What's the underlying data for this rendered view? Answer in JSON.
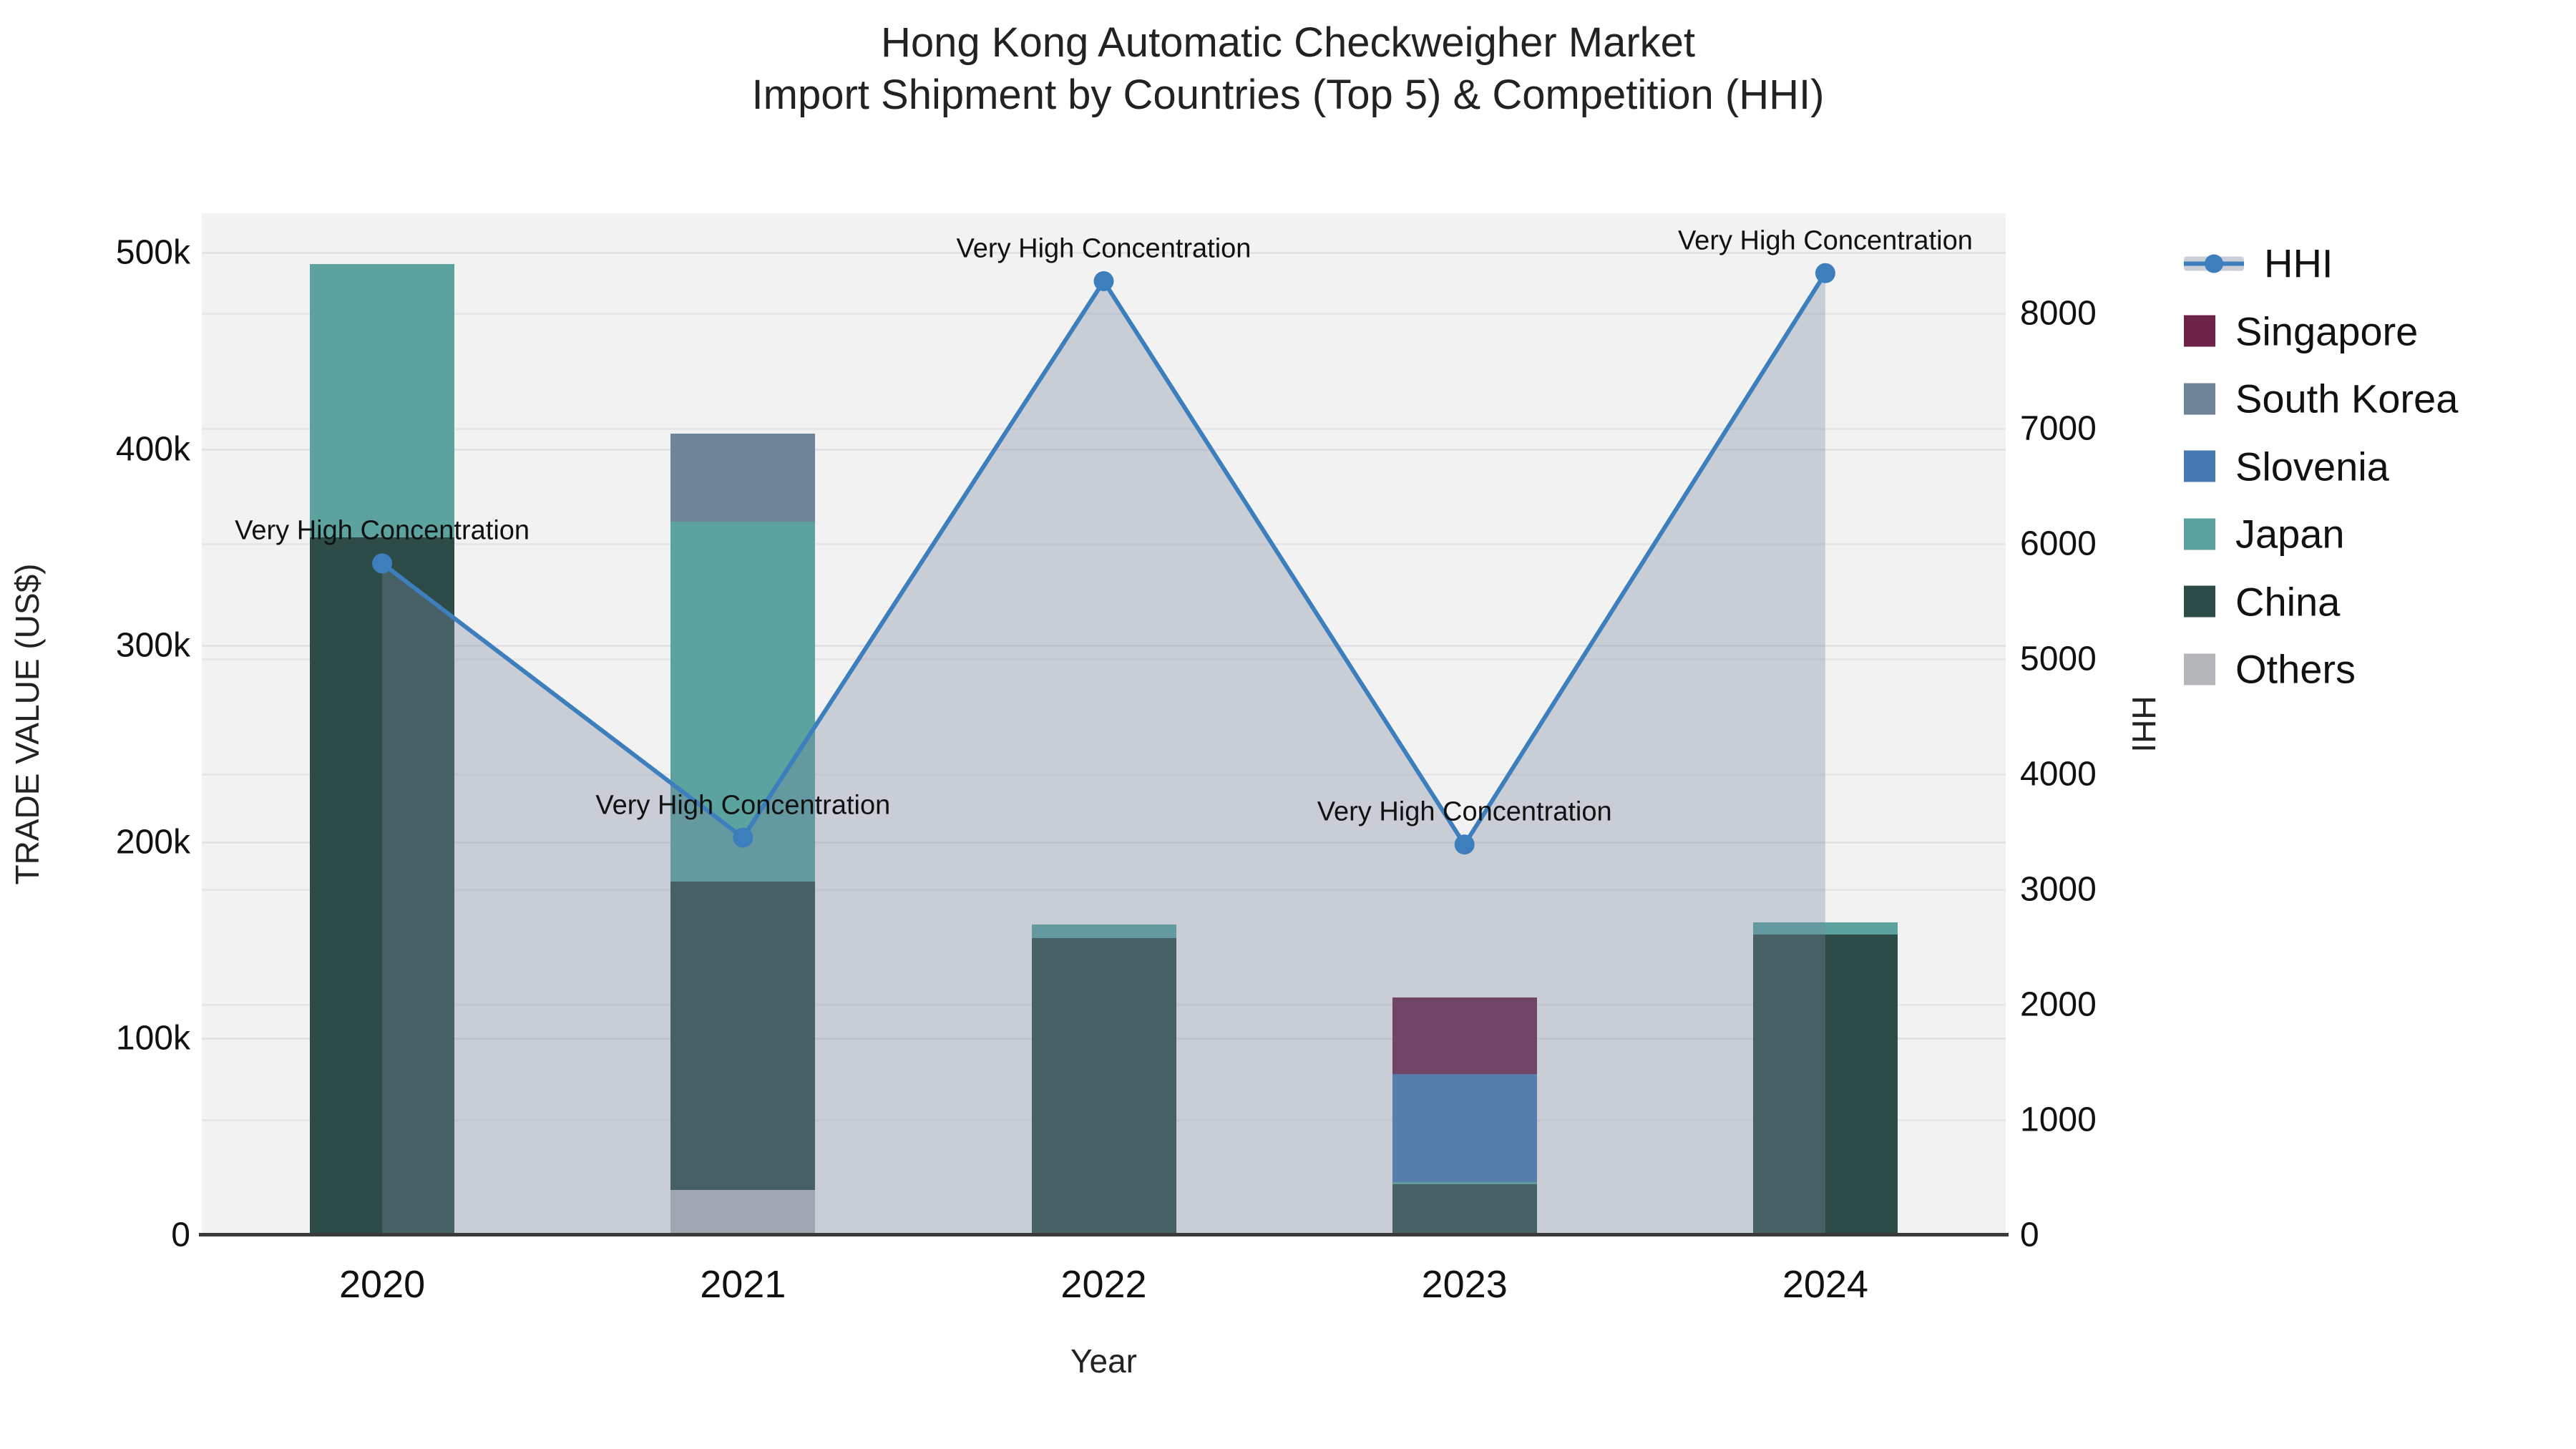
{
  "title": {
    "line1": "Hong Kong Automatic Checkweigher Market",
    "line2": "Import Shipment by Countries (Top 5) & Competition (HHI)"
  },
  "colors": {
    "plot_background": "#f2f2f2",
    "axis_line": "#3a3a3a",
    "gridline_left": "#e2e2e6",
    "gridline_right": "#e7e7ea",
    "hhi_line": "#3d7ebd",
    "hhi_area": "rgba(120,135,160,0.34)",
    "singapore": "#6d2347",
    "south_korea": "#708499",
    "slovenia": "#4679b2",
    "japan": "#5ca3a0",
    "china": "#2d4c48",
    "others": "#b4b6b9"
  },
  "legend": {
    "items": [
      {
        "label": "HHI",
        "type": "line",
        "color": "#3d7ebd"
      },
      {
        "label": "Singapore",
        "type": "swatch",
        "color": "#6d2347"
      },
      {
        "label": "South Korea",
        "type": "swatch",
        "color": "#708499"
      },
      {
        "label": "Slovenia",
        "type": "swatch",
        "color": "#4679b2"
      },
      {
        "label": "Japan",
        "type": "swatch",
        "color": "#5ca3a0"
      },
      {
        "label": "China",
        "type": "swatch",
        "color": "#2d4c48"
      },
      {
        "label": "Others",
        "type": "swatch",
        "color": "#b4b6b9"
      }
    ]
  },
  "chart_data": [
    {
      "type": "bar",
      "stacked": true,
      "categories": [
        "2020",
        "2021",
        "2022",
        "2023",
        "2024"
      ],
      "series": [
        {
          "name": "Others",
          "color": "#b4b6b9",
          "values": [
            0,
            23000,
            0,
            0,
            0
          ]
        },
        {
          "name": "China",
          "color": "#2d4c48",
          "values": [
            355000,
            157000,
            151000,
            26000,
            153000
          ]
        },
        {
          "name": "Japan",
          "color": "#5ca3a0",
          "values": [
            139000,
            183000,
            7000,
            1000,
            6000
          ]
        },
        {
          "name": "Slovenia",
          "color": "#4679b2",
          "values": [
            0,
            0,
            0,
            55000,
            0
          ]
        },
        {
          "name": "South Korea",
          "color": "#708499",
          "values": [
            0,
            45000,
            0,
            0,
            0
          ]
        },
        {
          "name": "Singapore",
          "color": "#6d2347",
          "values": [
            0,
            0,
            0,
            39000,
            0
          ]
        }
      ],
      "xlabel": "Year",
      "ylabel": "TRADE VALUE (US$)",
      "ylim": [
        0,
        520000
      ],
      "yticks": [
        {
          "label": "0",
          "value": 0
        },
        {
          "label": "100k",
          "value": 100000
        },
        {
          "label": "200k",
          "value": 200000
        },
        {
          "label": "300k",
          "value": 300000
        },
        {
          "label": "400k",
          "value": 400000
        },
        {
          "label": "500k",
          "value": 500000
        }
      ],
      "grid": true,
      "legend_position": "right"
    },
    {
      "type": "line",
      "name": "HHI",
      "x": [
        "2020",
        "2021",
        "2022",
        "2023",
        "2024"
      ],
      "values": [
        5830,
        3450,
        8280,
        3390,
        8350
      ],
      "area": true,
      "line_color": "#3d7ebd",
      "area_color": "rgba(120,135,160,0.34)",
      "ylabel": "HHI",
      "ylim": [
        0,
        8870
      ],
      "yticks": [
        {
          "label": "0",
          "value": 0
        },
        {
          "label": "1000",
          "value": 1000
        },
        {
          "label": "2000",
          "value": 2000
        },
        {
          "label": "3000",
          "value": 3000
        },
        {
          "label": "4000",
          "value": 4000
        },
        {
          "label": "5000",
          "value": 5000
        },
        {
          "label": "6000",
          "value": 6000
        },
        {
          "label": "7000",
          "value": 7000
        },
        {
          "label": "8000",
          "value": 8000
        }
      ],
      "annotations": [
        {
          "x": "2020",
          "text": "Very High Concentration"
        },
        {
          "x": "2021",
          "text": "Very High Concentration"
        },
        {
          "x": "2022",
          "text": "Very High Concentration"
        },
        {
          "x": "2023",
          "text": "Very High Concentration"
        },
        {
          "x": "2024",
          "text": "Very High Concentration"
        }
      ]
    }
  ]
}
